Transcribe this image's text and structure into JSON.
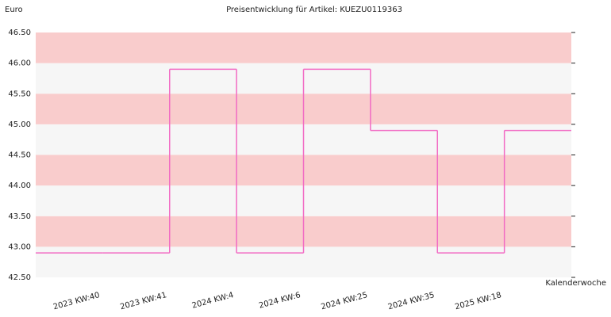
{
  "chart_data": {
    "type": "step",
    "title": "Preisentwicklung für Artikel: KUEZU0119363",
    "y_label": "Euro",
    "x_label": "Kalenderwoche",
    "categories": [
      null,
      "2023 KW:40",
      "2023 KW:41",
      "2024 KW:4",
      "2024 KW:6",
      "2024 KW:25",
      "2024 KW:35",
      "2025 KW:18"
    ],
    "values": [
      42.9,
      42.9,
      45.9,
      42.9,
      45.9,
      44.9,
      42.9,
      44.9
    ],
    "color": "#f26bc4",
    "band_colors": [
      "#f6f6f6",
      "#f9cccc"
    ],
    "ylim": [
      42.5,
      46.5
    ],
    "yticks": [
      {
        "value": 42.5,
        "label": "42.50"
      },
      {
        "value": 43,
        "label": "43.00"
      },
      {
        "value": 43.5,
        "label": "43.50"
      },
      {
        "value": 44,
        "label": "44.00"
      },
      {
        "value": 44.5,
        "label": "44.50"
      },
      {
        "value": 45,
        "label": "45.00"
      },
      {
        "value": 45.5,
        "label": "45.50"
      },
      {
        "value": 46,
        "label": "46.00"
      },
      {
        "value": 46.5,
        "label": "46.50"
      }
    ]
  }
}
